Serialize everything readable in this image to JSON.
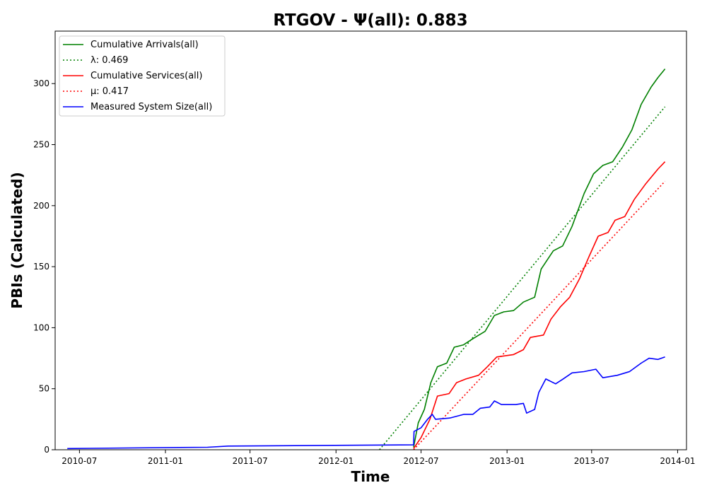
{
  "chart_data": {
    "type": "line",
    "title": "RTGOV -  Ψ(all): 0.883",
    "xlabel": "Time",
    "ylabel": "PBIs (Calculated)",
    "x_ticks": [
      "2010-07",
      "2011-01",
      "2011-07",
      "2012-01",
      "2012-07",
      "2013-01",
      "2013-07",
      "2014-01"
    ],
    "y_ticks": [
      "0",
      "50",
      "100",
      "150",
      "200",
      "250",
      "300"
    ],
    "x_range": [
      "2010-05-10",
      "2014-01-20"
    ],
    "ylim": [
      0,
      343
    ],
    "grid": false,
    "legend_position": "top-left",
    "series": [
      {
        "name": "Cumulative Arrivals(all)",
        "color": "#008000",
        "style": "solid",
        "points": [
          [
            "2012-06-15",
            2
          ],
          [
            "2012-06-25",
            22
          ],
          [
            "2012-07-08",
            33
          ],
          [
            "2012-07-22",
            55
          ],
          [
            "2012-08-05",
            68
          ],
          [
            "2012-08-25",
            71
          ],
          [
            "2012-09-10",
            84
          ],
          [
            "2012-09-30",
            86
          ],
          [
            "2012-10-20",
            91
          ],
          [
            "2012-11-15",
            97
          ],
          [
            "2012-12-05",
            110
          ],
          [
            "2012-12-25",
            113
          ],
          [
            "2013-01-15",
            114
          ],
          [
            "2013-02-05",
            121
          ],
          [
            "2013-03-01",
            125
          ],
          [
            "2013-03-15",
            148
          ],
          [
            "2013-04-10",
            163
          ],
          [
            "2013-04-30",
            167
          ],
          [
            "2013-05-20",
            183
          ],
          [
            "2013-06-15",
            210
          ],
          [
            "2013-07-05",
            226
          ],
          [
            "2013-07-25",
            233
          ],
          [
            "2013-08-15",
            236
          ],
          [
            "2013-09-05",
            248
          ],
          [
            "2013-09-25",
            262
          ],
          [
            "2013-10-15",
            283
          ],
          [
            "2013-11-05",
            297
          ],
          [
            "2013-11-20",
            305
          ],
          [
            "2013-12-05",
            312
          ]
        ]
      },
      {
        "name": "λ: 0.469",
        "color": "#008000",
        "style": "dotted",
        "points": [
          [
            "2012-04-03",
            0
          ],
          [
            "2013-12-05",
            281
          ]
        ]
      },
      {
        "name": "Cumulative Services(all)",
        "color": "#ff0000",
        "style": "solid",
        "points": [
          [
            "2012-06-15",
            1
          ],
          [
            "2012-07-01",
            10
          ],
          [
            "2012-07-20",
            25
          ],
          [
            "2012-08-05",
            44
          ],
          [
            "2012-08-30",
            46
          ],
          [
            "2012-09-15",
            55
          ],
          [
            "2012-10-05",
            58
          ],
          [
            "2012-11-01",
            61
          ],
          [
            "2012-11-20",
            68
          ],
          [
            "2012-12-10",
            76
          ],
          [
            "2013-01-15",
            78
          ],
          [
            "2013-02-05",
            82
          ],
          [
            "2013-02-20",
            92
          ],
          [
            "2013-03-20",
            94
          ],
          [
            "2013-04-05",
            107
          ],
          [
            "2013-04-25",
            117
          ],
          [
            "2013-05-15",
            125
          ],
          [
            "2013-06-05",
            140
          ],
          [
            "2013-06-25",
            158
          ],
          [
            "2013-07-15",
            175
          ],
          [
            "2013-08-05",
            178
          ],
          [
            "2013-08-20",
            188
          ],
          [
            "2013-09-10",
            191
          ],
          [
            "2013-09-30",
            205
          ],
          [
            "2013-10-25",
            218
          ],
          [
            "2013-11-20",
            230
          ],
          [
            "2013-12-05",
            236
          ]
        ]
      },
      {
        "name": "μ: 0.417",
        "color": "#ff0000",
        "style": "dotted",
        "points": [
          [
            "2012-06-15",
            0
          ],
          [
            "2013-12-05",
            220
          ]
        ]
      },
      {
        "name": "Measured System Size(all)",
        "color": "#0000ff",
        "style": "solid",
        "points": [
          [
            "2010-06-05",
            1
          ],
          [
            "2011-04-01",
            2
          ],
          [
            "2011-05-15",
            3
          ],
          [
            "2012-06-15",
            4
          ],
          [
            "2012-06-16",
            15
          ],
          [
            "2012-07-01",
            18
          ],
          [
            "2012-07-15",
            25
          ],
          [
            "2012-07-25",
            29
          ],
          [
            "2012-08-01",
            25
          ],
          [
            "2012-09-01",
            26
          ],
          [
            "2012-10-01",
            29
          ],
          [
            "2012-10-20",
            29
          ],
          [
            "2012-11-05",
            34
          ],
          [
            "2012-11-25",
            35
          ],
          [
            "2012-12-05",
            40
          ],
          [
            "2012-12-20",
            37
          ],
          [
            "2013-01-20",
            37
          ],
          [
            "2013-02-05",
            38
          ],
          [
            "2013-02-12",
            30
          ],
          [
            "2013-03-01",
            33
          ],
          [
            "2013-03-10",
            47
          ],
          [
            "2013-03-25",
            58
          ],
          [
            "2013-04-15",
            54
          ],
          [
            "2013-05-01",
            58
          ],
          [
            "2013-05-20",
            63
          ],
          [
            "2013-06-15",
            64
          ],
          [
            "2013-07-10",
            66
          ],
          [
            "2013-07-25",
            59
          ],
          [
            "2013-08-25",
            61
          ],
          [
            "2013-09-20",
            64
          ],
          [
            "2013-10-15",
            71
          ],
          [
            "2013-11-01",
            75
          ],
          [
            "2013-11-20",
            74
          ],
          [
            "2013-12-05",
            76
          ]
        ]
      }
    ]
  }
}
